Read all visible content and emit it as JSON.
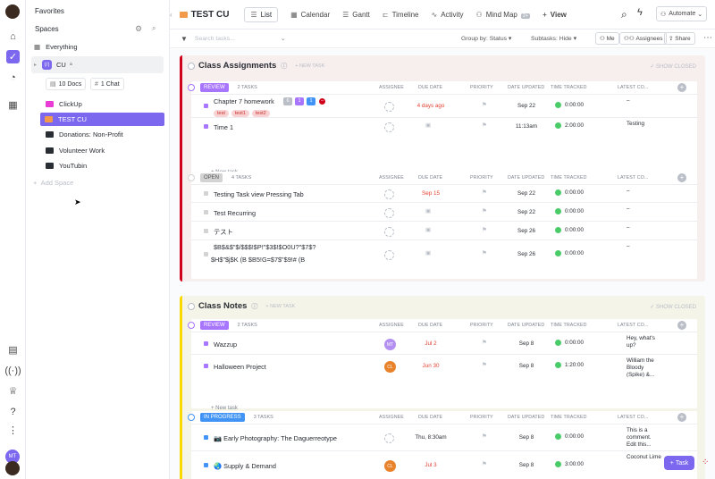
{
  "sidebar": {
    "favorites": "Favorites",
    "spaces": "Spaces",
    "everything": "Everything",
    "space_name": "CU",
    "docs": "10 Docs",
    "chat": "1 Chat",
    "folders": [
      {
        "label": "ClickUp",
        "color": "#e83cd4"
      },
      {
        "label": "TEST CU",
        "color": "#f2994a"
      },
      {
        "label": "Donations: Non-Profit",
        "color": "#292d34"
      },
      {
        "label": "Volunteer Work",
        "color": "#292d34"
      },
      {
        "label": "YouTubin",
        "color": "#292d34"
      }
    ],
    "add_space": "Add Space",
    "user_initials": "MT"
  },
  "header": {
    "title": "TEST CU",
    "tabs": [
      "List",
      "Calendar",
      "Gantt",
      "Timeline",
      "Activity",
      "Mind Map",
      "View"
    ],
    "mindmap_badge": "2+",
    "automate": "Automate"
  },
  "toolbar": {
    "search_placeholder": "Search tasks...",
    "group_by": "Group by: Status",
    "subtasks": "Subtasks: Hide",
    "me": "Me",
    "assignees": "Assignees",
    "share": "Share"
  },
  "columns": [
    "ASSIGNEE",
    "DUE DATE",
    "PRIORITY",
    "DATE UPDATED",
    "TIME TRACKED",
    "LATEST CO..."
  ],
  "lists": [
    {
      "title": "Class Assignments",
      "new_task": "+ NEW TASK",
      "show_closed": "SHOW CLOSED",
      "groups": [
        {
          "status": "REVIEW",
          "color": "#a875ff",
          "count": "2 TASKS",
          "tasks": [
            {
              "name": "Chapter 7 homework",
              "due": "4 days ago",
              "due_red": true,
              "updated": "Sep 22",
              "time": "0:00:00",
              "comment": "–",
              "badges": [
                "6",
                "1",
                "1"
              ],
              "tags": [
                "test",
                "test1",
                "test2"
              ]
            },
            {
              "name": "Time 1",
              "due": "",
              "due_red": false,
              "updated": "11:13am",
              "time": "2:00:00",
              "comment": "Testing"
            }
          ],
          "add": "+ New task"
        },
        {
          "status": "OPEN",
          "color": "#d3d3d3",
          "count": "4 TASKS",
          "tasks": [
            {
              "name": "Testing Task view Pressing Tab",
              "due": "Sep 15",
              "due_red": true,
              "updated": "Sep 22",
              "time": "0:00:00",
              "comment": "–"
            },
            {
              "name": "Test Recurring",
              "due": "",
              "due_red": false,
              "updated": "Sep 22",
              "time": "0:00:00",
              "comment": "–"
            },
            {
              "name": "テスト",
              "due": "",
              "due_red": false,
              "updated": "Sep 26",
              "time": "0:00:00",
              "comment": "–"
            },
            {
              "name": "$B$&$\"$/$$$!$P!\"$3$!$O0U?\"$7$?",
              "name2": "$H$\"$j$K (B $B5!G=$7$\"$9!# (B",
              "due": "",
              "due_red": false,
              "updated": "Sep 26",
              "time": "0:00:00",
              "comment": "–"
            }
          ],
          "add": "+ New task"
        }
      ]
    },
    {
      "title": "Class Notes",
      "new_task": "+ NEW TASK",
      "show_closed": "SHOW CLOSED",
      "groups": [
        {
          "status": "REVIEW",
          "color": "#a875ff",
          "count": "2 TASKS",
          "tasks": [
            {
              "name": "Wazzup",
              "due": "Jul 2",
              "due_red": true,
              "updated": "Sep 8",
              "time": "0:00:00",
              "comment": "Hey, what's up?",
              "assignee": "MT"
            },
            {
              "name": "Halloween Project",
              "due": "Jun 30",
              "due_red": true,
              "updated": "Sep 8",
              "time": "1:20:00",
              "comment": "William the Bloody (Spike) &...",
              "assignee": "CL"
            }
          ],
          "add": "+ New task"
        },
        {
          "status": "IN PROGRESS",
          "color": "#4194f6",
          "count": "3 TASKS",
          "tasks": [
            {
              "name": "📷 Early Photography: The Daguerreotype",
              "due": "Thu, 8:30am",
              "due_red": false,
              "updated": "Sep 8",
              "time": "0:00:00",
              "comment": "This is a comment. Edit this..."
            },
            {
              "name": "🌏 Supply & Demand",
              "due": "Jul 3",
              "due_red": true,
              "updated": "Sep 8",
              "time": "3:00:00",
              "comment": "Coconut Lime",
              "assignee": "CL"
            }
          ]
        }
      ]
    }
  ],
  "fab": "Task"
}
